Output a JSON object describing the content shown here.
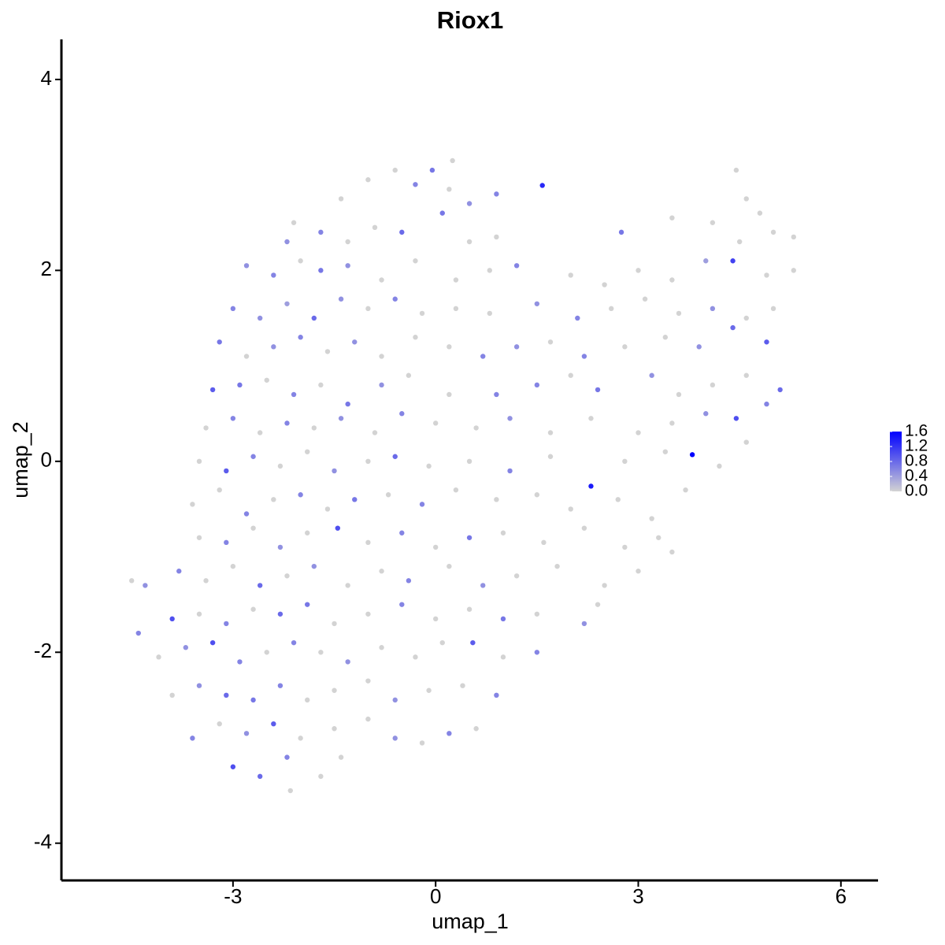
{
  "chart_data": {
    "type": "scatter",
    "title": "Riox1",
    "xlabel": "umap_1",
    "ylabel": "umap_2",
    "xlim": [
      -5.54,
      6.55
    ],
    "xticks": [
      -3,
      0,
      3,
      6
    ],
    "ylim": [
      -4.39,
      4.42
    ],
    "yticks": [
      -4,
      -2,
      0,
      2,
      4
    ],
    "color_low": "#d3d3d3",
    "color_high": "#0000ff",
    "colorbar_lim": [
      0,
      1.6
    ],
    "colorbar_ticks": [
      {
        "value": 0,
        "label": "0.0"
      },
      0.4,
      0.8,
      1.2,
      1.6
    ],
    "x": [
      -1.4,
      -1.0,
      -0.6,
      -0.3,
      -0.05,
      0.2,
      0.25,
      0.5,
      0.9,
      1.58,
      4.45,
      4.6,
      4.8,
      -2.1,
      -1.7,
      -1.3,
      -0.9,
      -0.5,
      0.1,
      0.5,
      0.9,
      2.75,
      3.5,
      4.1,
      4.5,
      5.0,
      5.3,
      -2.2,
      -2.8,
      -2.4,
      -2.0,
      -1.7,
      -1.3,
      -0.8,
      -0.3,
      0.3,
      0.8,
      1.2,
      2.0,
      2.5,
      3.0,
      3.5,
      4.0,
      4.4,
      4.9,
      5.3,
      -3.0,
      -2.6,
      -2.2,
      -1.8,
      -1.4,
      -1.0,
      -0.6,
      -0.2,
      0.3,
      0.8,
      1.5,
      2.1,
      2.6,
      3.1,
      3.6,
      4.1,
      4.6,
      5.0,
      -3.2,
      -2.8,
      -2.4,
      -2.0,
      -1.6,
      -1.2,
      -0.8,
      -0.3,
      0.2,
      0.7,
      1.2,
      1.7,
      2.2,
      2.8,
      3.4,
      3.9,
      4.4,
      4.9,
      -3.3,
      -2.9,
      -2.5,
      -2.1,
      -1.7,
      -1.3,
      -0.8,
      -0.4,
      0.2,
      0.9,
      1.5,
      2.0,
      2.4,
      3.2,
      3.6,
      4.1,
      4.6,
      5.1,
      -3.4,
      -3.0,
      -2.6,
      -2.2,
      -1.8,
      -1.4,
      -0.9,
      -0.5,
      0.0,
      0.6,
      1.1,
      1.7,
      2.3,
      3.0,
      3.5,
      4.0,
      4.45,
      4.9,
      -3.5,
      -3.1,
      -2.7,
      -2.3,
      -1.9,
      -1.5,
      -1.0,
      -0.6,
      -0.1,
      0.5,
      1.1,
      1.7,
      2.3,
      2.8,
      3.4,
      3.8,
      4.2,
      4.6,
      -3.6,
      -3.2,
      -2.8,
      -2.4,
      -2.0,
      -1.6,
      -1.2,
      -0.7,
      -0.2,
      0.3,
      0.9,
      1.5,
      2.0,
      2.7,
      3.2,
      3.7,
      -3.5,
      -3.1,
      -2.7,
      -2.3,
      -1.9,
      -1.45,
      -1.0,
      -0.5,
      0.0,
      0.5,
      1.0,
      1.6,
      2.2,
      2.8,
      3.3,
      3.5,
      -4.5,
      -4.3,
      -3.8,
      -3.4,
      -3.0,
      -2.6,
      -2.2,
      -1.8,
      -1.3,
      -0.8,
      -0.4,
      0.2,
      0.7,
      1.2,
      1.8,
      2.5,
      3.0,
      -4.4,
      -3.9,
      -3.5,
      -3.1,
      -2.7,
      -2.3,
      -1.9,
      -1.5,
      -1.0,
      -0.5,
      0.0,
      0.5,
      1.0,
      1.5,
      2.2,
      2.4,
      -4.1,
      -3.7,
      -3.3,
      -2.9,
      -2.5,
      -2.1,
      -1.7,
      -1.3,
      -0.8,
      -0.3,
      0.1,
      0.55,
      1.0,
      1.5,
      -3.9,
      -3.5,
      -3.1,
      -2.7,
      -2.3,
      -1.9,
      -1.5,
      -1.0,
      -0.6,
      -0.1,
      0.4,
      0.9,
      -3.6,
      -3.2,
      -2.8,
      -2.4,
      -2.0,
      -1.5,
      -1.0,
      -0.6,
      -0.2,
      0.2,
      0.6,
      -3.0,
      -2.6,
      -2.2,
      -2.15,
      -1.7,
      -1.4
    ],
    "y": [
      2.75,
      2.95,
      3.05,
      2.9,
      3.05,
      2.85,
      3.15,
      2.7,
      2.8,
      2.89,
      3.05,
      2.75,
      2.6,
      2.5,
      2.4,
      2.3,
      2.45,
      2.4,
      2.6,
      2.3,
      2.35,
      2.4,
      2.55,
      2.5,
      2.3,
      2.4,
      2.35,
      2.3,
      2.05,
      1.95,
      2.1,
      2.0,
      2.05,
      1.9,
      2.1,
      1.9,
      2.0,
      2.05,
      1.95,
      1.85,
      2.0,
      1.9,
      2.1,
      2.1,
      1.95,
      2.0,
      1.6,
      1.5,
      1.65,
      1.5,
      1.7,
      1.6,
      1.7,
      1.55,
      1.6,
      1.55,
      1.65,
      1.5,
      1.6,
      1.7,
      1.55,
      1.6,
      1.5,
      1.6,
      1.25,
      1.1,
      1.2,
      1.3,
      1.15,
      1.25,
      1.1,
      1.3,
      1.2,
      1.1,
      1.2,
      1.25,
      1.1,
      1.2,
      1.3,
      1.2,
      1.4,
      1.25,
      0.75,
      0.8,
      0.85,
      0.7,
      0.8,
      0.6,
      0.8,
      0.9,
      0.7,
      0.7,
      0.8,
      0.9,
      0.75,
      0.9,
      0.7,
      0.8,
      0.9,
      0.75,
      0.35,
      0.45,
      0.3,
      0.4,
      0.35,
      0.45,
      0.3,
      0.5,
      0.4,
      0.35,
      0.45,
      0.3,
      0.45,
      0.3,
      0.4,
      0.5,
      0.45,
      0.6,
      0.0,
      -0.1,
      0.05,
      -0.05,
      0.1,
      -0.1,
      0.0,
      0.05,
      -0.05,
      0.0,
      -0.1,
      0.05,
      -0.26,
      0.0,
      0.1,
      0.07,
      -0.05,
      0.2,
      -0.45,
      -0.3,
      -0.55,
      -0.4,
      -0.35,
      -0.5,
      -0.4,
      -0.35,
      -0.45,
      -0.3,
      -0.4,
      -0.35,
      -0.5,
      -0.4,
      -0.6,
      -0.3,
      -0.8,
      -0.85,
      -0.7,
      -0.9,
      -0.75,
      -0.7,
      -0.85,
      -0.75,
      -0.9,
      -0.8,
      -0.75,
      -0.85,
      -0.7,
      -0.9,
      -0.8,
      -0.95,
      -1.25,
      -1.3,
      -1.15,
      -1.25,
      -1.1,
      -1.3,
      -1.2,
      -1.1,
      -1.3,
      -1.15,
      -1.25,
      -1.1,
      -1.3,
      -1.2,
      -1.1,
      -1.3,
      -1.15,
      -1.8,
      -1.65,
      -1.6,
      -1.7,
      -1.55,
      -1.6,
      -1.5,
      -1.7,
      -1.6,
      -1.5,
      -1.65,
      -1.55,
      -1.65,
      -1.6,
      -1.7,
      -1.5,
      -2.05,
      -1.95,
      -1.9,
      -2.1,
      -2.0,
      -1.9,
      -2.0,
      -2.1,
      -1.95,
      -2.05,
      -1.9,
      -1.9,
      -2.05,
      -2.0,
      -2.45,
      -2.35,
      -2.45,
      -2.5,
      -2.35,
      -2.5,
      -2.4,
      -2.3,
      -2.5,
      -2.4,
      -2.35,
      -2.45,
      -2.9,
      -2.75,
      -2.85,
      -2.75,
      -2.9,
      -2.8,
      -2.7,
      -2.9,
      -2.95,
      -2.85,
      -2.8,
      -3.2,
      -3.3,
      -3.1,
      -3.45,
      -3.3,
      -3.1
    ],
    "values": [
      0,
      0,
      0,
      0.6,
      0.7,
      0,
      0,
      0.5,
      0.6,
      1.3,
      0,
      0,
      0,
      0,
      0.6,
      0,
      0,
      0.8,
      0.7,
      0,
      0,
      0.7,
      0,
      0,
      0,
      0,
      0,
      0.5,
      0.5,
      0.6,
      0,
      0.7,
      0.5,
      0,
      0,
      0,
      0,
      0.6,
      0,
      0,
      0,
      0,
      0.4,
      1.1,
      0,
      0,
      0.6,
      0.5,
      0.4,
      0.8,
      0.5,
      0,
      0.6,
      0,
      0,
      0,
      0.5,
      0.6,
      0,
      0,
      0,
      0.5,
      0,
      0,
      0.7,
      0,
      0.5,
      0.6,
      0,
      0.5,
      0,
      0,
      0,
      0.6,
      0.5,
      0,
      0.6,
      0,
      0,
      0.5,
      0.8,
      0.9,
      0.9,
      0.7,
      0,
      0.6,
      0,
      0.7,
      0.5,
      0,
      0,
      0.6,
      0.6,
      0,
      0.7,
      0.5,
      0,
      0,
      0,
      0.8,
      0,
      0.6,
      0,
      0.6,
      0,
      0.5,
      0,
      0.6,
      0,
      0,
      0.5,
      0,
      0,
      0,
      0,
      0.5,
      1.0,
      0.6,
      0,
      0.9,
      0.6,
      0,
      0,
      0.5,
      0,
      0.8,
      0,
      0,
      0.6,
      0,
      1.4,
      0,
      0,
      1.6,
      0,
      0,
      0,
      0,
      0.6,
      0,
      0.6,
      0,
      0.7,
      0,
      0.6,
      0,
      0,
      0,
      0,
      0,
      0,
      0,
      0,
      0.6,
      0,
      0.5,
      0,
      1.0,
      0,
      0.6,
      0,
      0.7,
      0,
      0,
      0,
      0,
      0,
      0,
      0,
      0.5,
      0.6,
      0,
      0,
      0.8,
      0,
      0.5,
      0,
      0,
      0.6,
      0,
      0.5,
      0,
      0,
      0,
      0,
      0.6,
      1.0,
      0,
      0.6,
      0,
      0.8,
      0.7,
      0,
      0,
      0.6,
      0,
      0,
      0.7,
      0,
      0.5,
      0,
      0,
      0.5,
      1.0,
      0.6,
      0,
      0.6,
      0,
      0.5,
      0,
      0,
      0,
      0.9,
      0,
      0.6,
      0,
      0.5,
      0.8,
      0.7,
      0.6,
      0,
      0,
      0,
      0.5,
      0,
      0,
      0.6,
      0.6,
      0,
      0.5,
      0.9,
      0,
      0,
      0,
      0.5,
      0,
      0.6,
      0,
      1.0,
      0.8,
      0.6,
      0,
      0,
      0
    ]
  }
}
